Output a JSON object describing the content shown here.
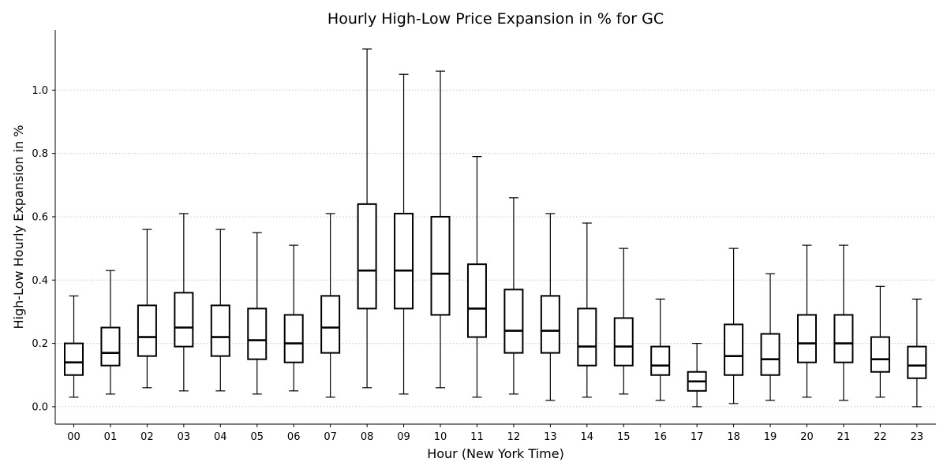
{
  "chart_data": {
    "type": "boxplot",
    "title": "Hourly High-Low Price Expansion in % for GC",
    "xlabel": "Hour (New York Time)",
    "ylabel": "High-Low Hourly Expansion in %",
    "ylim": [
      -0.055,
      1.19
    ],
    "yticks": [
      "0.0",
      "0.2",
      "0.4",
      "0.6",
      "0.8",
      "1.0"
    ],
    "grid": "horizontal-dotted",
    "categories": [
      "00",
      "01",
      "02",
      "03",
      "04",
      "05",
      "06",
      "07",
      "08",
      "09",
      "10",
      "11",
      "12",
      "13",
      "14",
      "15",
      "16",
      "17",
      "18",
      "19",
      "20",
      "21",
      "22",
      "23"
    ],
    "boxes": [
      {
        "whislo": 0.03,
        "q1": 0.1,
        "med": 0.14,
        "q3": 0.2,
        "whishi": 0.35
      },
      {
        "whislo": 0.04,
        "q1": 0.13,
        "med": 0.17,
        "q3": 0.25,
        "whishi": 0.43
      },
      {
        "whislo": 0.06,
        "q1": 0.16,
        "med": 0.22,
        "q3": 0.32,
        "whishi": 0.56
      },
      {
        "whislo": 0.05,
        "q1": 0.19,
        "med": 0.25,
        "q3": 0.36,
        "whishi": 0.61
      },
      {
        "whislo": 0.05,
        "q1": 0.16,
        "med": 0.22,
        "q3": 0.32,
        "whishi": 0.56
      },
      {
        "whislo": 0.04,
        "q1": 0.15,
        "med": 0.21,
        "q3": 0.31,
        "whishi": 0.55
      },
      {
        "whislo": 0.05,
        "q1": 0.14,
        "med": 0.2,
        "q3": 0.29,
        "whishi": 0.51
      },
      {
        "whislo": 0.03,
        "q1": 0.17,
        "med": 0.25,
        "q3": 0.35,
        "whishi": 0.61
      },
      {
        "whislo": 0.06,
        "q1": 0.31,
        "med": 0.43,
        "q3": 0.64,
        "whishi": 1.13
      },
      {
        "whislo": 0.04,
        "q1": 0.31,
        "med": 0.43,
        "q3": 0.61,
        "whishi": 1.05
      },
      {
        "whislo": 0.06,
        "q1": 0.29,
        "med": 0.42,
        "q3": 0.6,
        "whishi": 1.06
      },
      {
        "whislo": 0.03,
        "q1": 0.22,
        "med": 0.31,
        "q3": 0.45,
        "whishi": 0.79
      },
      {
        "whislo": 0.04,
        "q1": 0.17,
        "med": 0.24,
        "q3": 0.37,
        "whishi": 0.66
      },
      {
        "whislo": 0.02,
        "q1": 0.17,
        "med": 0.24,
        "q3": 0.35,
        "whishi": 0.61
      },
      {
        "whislo": 0.03,
        "q1": 0.13,
        "med": 0.19,
        "q3": 0.31,
        "whishi": 0.58
      },
      {
        "whislo": 0.04,
        "q1": 0.13,
        "med": 0.19,
        "q3": 0.28,
        "whishi": 0.5
      },
      {
        "whislo": 0.02,
        "q1": 0.1,
        "med": 0.13,
        "q3": 0.19,
        "whishi": 0.34
      },
      {
        "whislo": 0.0,
        "q1": 0.05,
        "med": 0.08,
        "q3": 0.11,
        "whishi": 0.2
      },
      {
        "whislo": 0.01,
        "q1": 0.1,
        "med": 0.16,
        "q3": 0.26,
        "whishi": 0.5
      },
      {
        "whislo": 0.02,
        "q1": 0.1,
        "med": 0.15,
        "q3": 0.23,
        "whishi": 0.42
      },
      {
        "whislo": 0.03,
        "q1": 0.14,
        "med": 0.2,
        "q3": 0.29,
        "whishi": 0.51
      },
      {
        "whislo": 0.02,
        "q1": 0.14,
        "med": 0.2,
        "q3": 0.29,
        "whishi": 0.51
      },
      {
        "whislo": 0.03,
        "q1": 0.11,
        "med": 0.15,
        "q3": 0.22,
        "whishi": 0.38
      },
      {
        "whislo": 0.0,
        "q1": 0.09,
        "med": 0.13,
        "q3": 0.19,
        "whishi": 0.34
      }
    ],
    "colors": {
      "box_edge": "#000000",
      "median": "#000000",
      "grid": "#c8c8c8",
      "background": "#ffffff"
    }
  }
}
